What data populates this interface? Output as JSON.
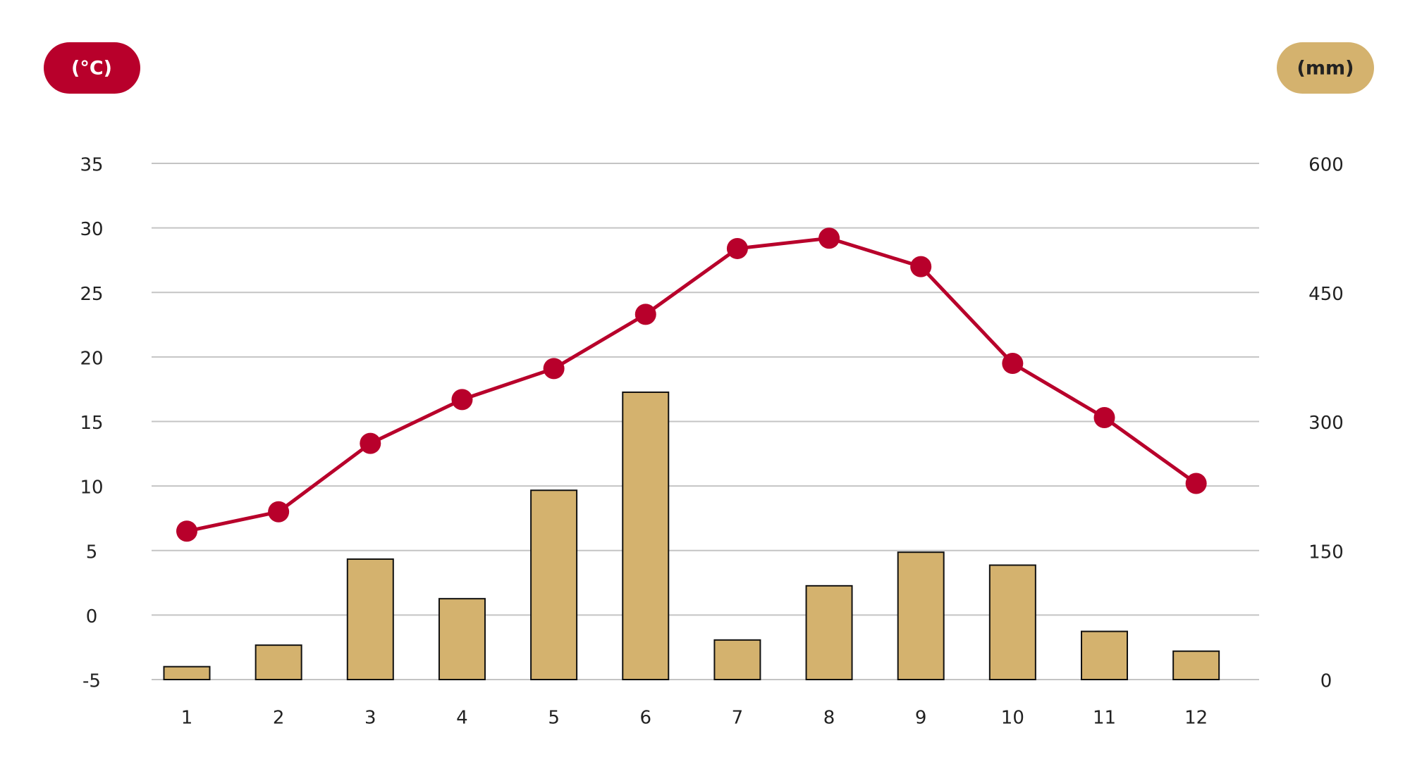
{
  "chart_data": {
    "type": "combo",
    "ylabel": "(°C)",
    "y2label": "(mm)",
    "categories": [
      "1",
      "2",
      "3",
      "4",
      "5",
      "6",
      "7",
      "8",
      "9",
      "10",
      "11",
      "12"
    ],
    "series": [
      {
        "type": "bar",
        "axis": "y2",
        "color": "#d4b26e",
        "values": [
          15,
          40,
          140,
          94,
          220,
          334,
          46,
          109,
          148,
          133,
          56,
          33
        ]
      },
      {
        "type": "line",
        "axis": "y",
        "color": "#b8002b",
        "values": [
          6.5,
          8.0,
          13.3,
          16.7,
          19.1,
          23.3,
          28.4,
          29.2,
          27.0,
          19.5,
          15.3,
          10.2
        ]
      }
    ],
    "ylim": [
      -5,
      35
    ],
    "yticks": [
      -5,
      0,
      5,
      10,
      15,
      20,
      25,
      30,
      35
    ],
    "y2lim": [
      0,
      600
    ],
    "y2ticks": [
      0,
      150,
      300,
      450,
      600
    ],
    "grid": true
  }
}
